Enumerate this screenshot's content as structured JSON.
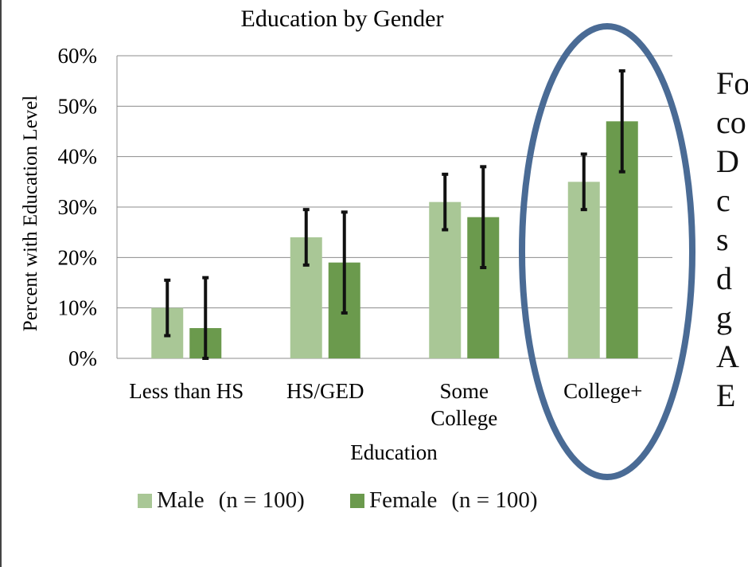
{
  "colors": {
    "male": "#a9c796",
    "female": "#6b9a4d",
    "error_bar": "#111111",
    "gridline": "#8c8c8c",
    "highlight_ellipse": "#4a6b95"
  },
  "chart_data": {
    "type": "bar",
    "title": "Education by Gender",
    "xlabel": "Education",
    "ylabel": "Percent with Education Level",
    "categories": [
      "Less than HS",
      "HS/GED",
      "Some College",
      "College+"
    ],
    "y_ticks": [
      "0%",
      "10%",
      "20%",
      "30%",
      "40%",
      "50%",
      "60%"
    ],
    "ylim": [
      0,
      60
    ],
    "grid": true,
    "legend_position": "bottom",
    "series": [
      {
        "name": "Male",
        "n_label": "(n = 100)",
        "values": [
          10,
          24,
          31,
          35
        ],
        "error_low": [
          4.5,
          18.5,
          25.5,
          29.5
        ],
        "error_high": [
          15.5,
          29.5,
          36.5,
          40.5
        ]
      },
      {
        "name": "Female",
        "n_label": "(n = 100)",
        "values": [
          6,
          19,
          28,
          47
        ],
        "error_low": [
          0,
          9,
          18,
          37
        ],
        "error_high": [
          16,
          29,
          38,
          57
        ]
      }
    ],
    "highlighted_category": "College+"
  },
  "side_text": {
    "lines": [
      "Fo",
      "co",
      "D",
      "c",
      "s",
      "d",
      "g",
      "A",
      "E"
    ]
  }
}
